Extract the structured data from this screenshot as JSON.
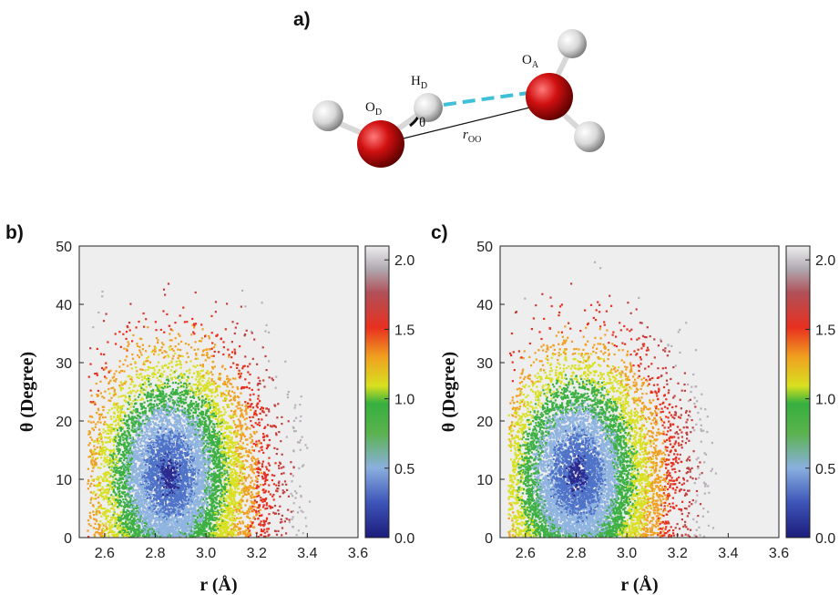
{
  "figure": {
    "panel_a_label": "a)",
    "molecule": {
      "labels": {
        "od": "O",
        "od_sub": "D",
        "hd": "H",
        "hd_sub": "D",
        "oa": "O",
        "oa_sub": "A",
        "theta": "θ",
        "roo": "r",
        "roo_sub": "OO"
      },
      "colors": {
        "oxygen": "#d01010",
        "hydrogen": "#e8e8e8",
        "hbond": "#3fc0d8"
      }
    }
  },
  "chart_data": [
    {
      "type": "heatmap",
      "panel": "b)",
      "xlabel": "r (Å)",
      "ylabel": "θ (Degree)",
      "xlim": [
        2.5,
        3.6
      ],
      "ylim": [
        0,
        50
      ],
      "xticks": [
        "2.6",
        "2.8",
        "3.0",
        "3.2",
        "3.4",
        "3.6"
      ],
      "yticks": [
        "0",
        "10",
        "20",
        "30",
        "40",
        "50"
      ],
      "colorbar": {
        "min": 0.0,
        "max": 2.1,
        "ticks": [
          "0.0",
          "0.5",
          "1.0",
          "1.5",
          "2.0"
        ]
      },
      "minimum": {
        "r": 2.85,
        "theta": 11
      },
      "grid": false
    },
    {
      "type": "heatmap",
      "panel": "c)",
      "xlabel": "r (Å)",
      "ylabel": "θ (Degree)",
      "xlim": [
        2.5,
        3.6
      ],
      "ylim": [
        0,
        50
      ],
      "xticks": [
        "2.6",
        "2.8",
        "3.0",
        "3.2",
        "3.4",
        "3.6"
      ],
      "yticks": [
        "0",
        "10",
        "20",
        "30",
        "40",
        "50"
      ],
      "colorbar": {
        "min": 0.0,
        "max": 2.1,
        "ticks": [
          "0.0",
          "0.5",
          "1.0",
          "1.5",
          "2.0"
        ]
      },
      "minimum": {
        "r": 2.8,
        "theta": 11
      },
      "grid": false
    }
  ],
  "colormap": [
    "#2a2a8f",
    "#4f73c8",
    "#8fb4e0",
    "#3cb043",
    "#d8e020",
    "#f0a020",
    "#e83020",
    "#c04040",
    "#b8b0b8",
    "#eeeeee"
  ]
}
